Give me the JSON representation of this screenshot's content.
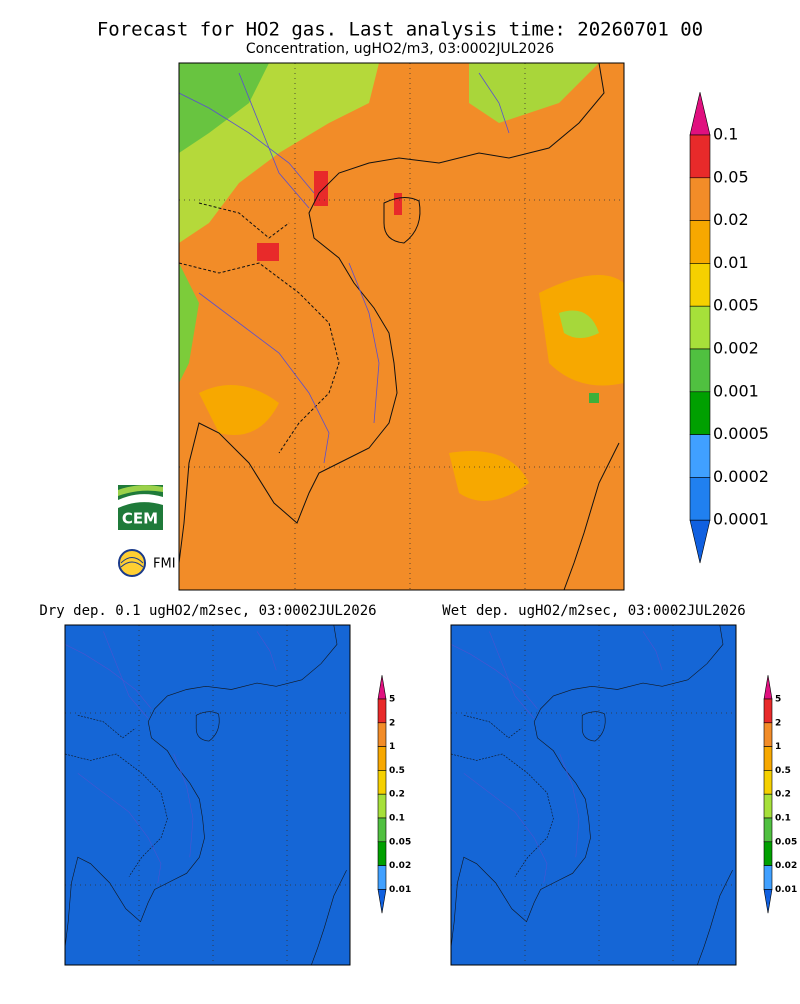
{
  "header": {
    "title": "Forecast for HO2 gas. Last analysis time: 20260701 00",
    "subtitle": "Concentration, ugHO2/m3, 03:0002JUL2026"
  },
  "main_legend": {
    "labels": [
      "0.1",
      "0.05",
      "0.02",
      "0.01",
      "0.005",
      "0.002",
      "0.001",
      "0.0005",
      "0.0002",
      "0.0001"
    ]
  },
  "panels": [
    {
      "title": "Dry dep. 0.1 ugHO2/m2sec, 03:0002JUL2026",
      "legend_labels": [
        "5",
        "2",
        "1",
        "0.5",
        "0.2",
        "0.1",
        "0.05",
        "0.02",
        "0.01"
      ]
    },
    {
      "title": "Wet dep. ugHO2/m2sec, 03:0002JUL2026",
      "legend_labels": [
        "5",
        "2",
        "1",
        "0.5",
        "0.2",
        "0.1",
        "0.05",
        "0.02",
        "0.01"
      ]
    }
  ],
  "logos": {
    "cem": "CEM",
    "fmi": "FMI"
  }
}
